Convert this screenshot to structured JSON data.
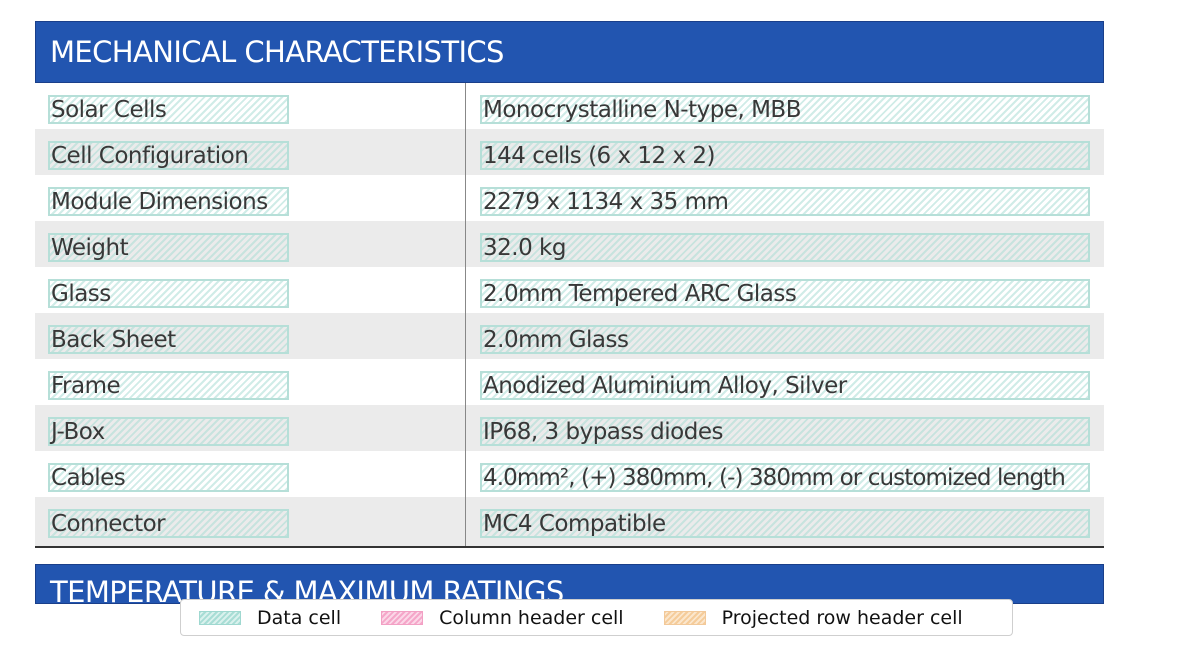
{
  "sections": {
    "main_title": "MECHANICAL CHARACTERISTICS",
    "next_title": "TEMPERATURE & MAXIMUM RATINGS"
  },
  "rows": [
    {
      "label": "Solar Cells",
      "value": "Monocrystalline N-type, MBB"
    },
    {
      "label": "Cell Configuration",
      "value": "144 cells (6 x 12 x 2)"
    },
    {
      "label": "Module Dimensions",
      "value": "2279 x 1134 x 35 mm"
    },
    {
      "label": "Weight",
      "value": "32.0 kg"
    },
    {
      "label": "Glass",
      "value": "2.0mm Tempered ARC Glass"
    },
    {
      "label": "Back Sheet",
      "value": "2.0mm Glass"
    },
    {
      "label": "Frame",
      "value": "Anodized Aluminium Alloy, Silver"
    },
    {
      "label": "J-Box",
      "value": "IP68, 3 bypass diodes"
    },
    {
      "label": "Cables",
      "value": "4.0mm², (+) 380mm, (-) 380mm or customized length"
    },
    {
      "label": "Connector",
      "value": "MC4 Compatible"
    }
  ],
  "legend": {
    "data_cell": "Data cell",
    "column_header_cell": "Column header cell",
    "projected_row_header_cell": "Projected row header cell"
  },
  "colors": {
    "header_blue": "#2255b0",
    "data_cell_hatch": "#a8ddd5",
    "column_header_hatch": "#f5a6c9",
    "row_header_hatch": "#f5cc9a",
    "alt_row": "#ebebeb"
  }
}
